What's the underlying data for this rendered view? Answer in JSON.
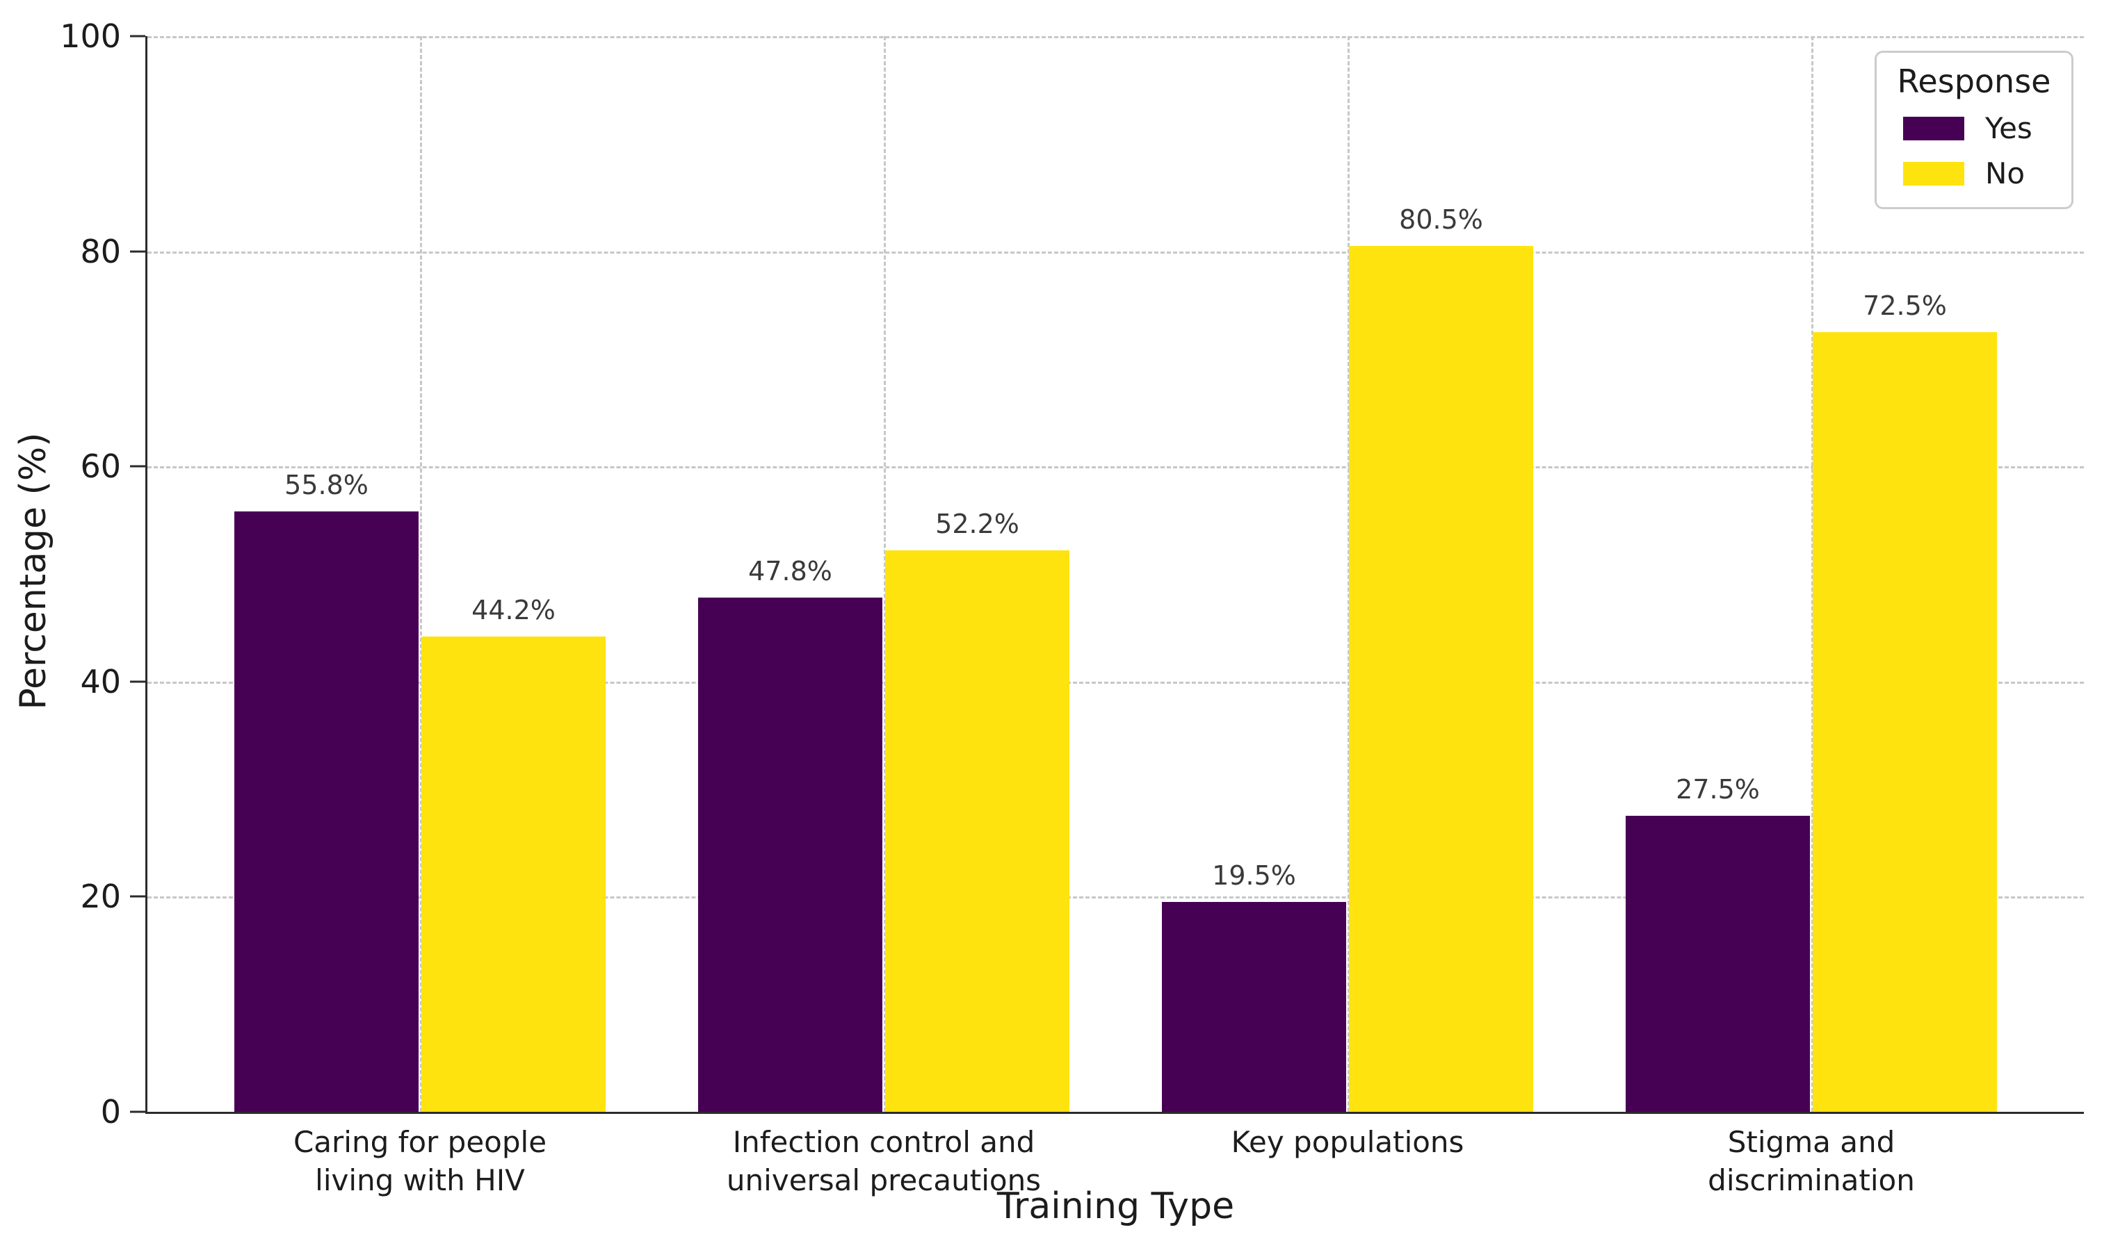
{
  "figure": {
    "background": "#ffffff"
  },
  "legend": {
    "title": "Response",
    "position": "upper right"
  },
  "chart_data": {
    "type": "bar",
    "title": "",
    "xlabel": "Training Type",
    "ylabel": "Percentage (%)",
    "ylim": [
      0,
      100
    ],
    "yticks": [
      0,
      20,
      40,
      60,
      80,
      100
    ],
    "grid": true,
    "grid_style": "dashed",
    "legend_position": "upper right",
    "categories": [
      "Caring for people\nliving with HIV",
      "Infection control and\nuniversal precautions",
      "Key populations",
      "Stigma and\ndiscrimination"
    ],
    "series": [
      {
        "name": "Yes",
        "color": "#470154",
        "values": [
          55.8,
          47.8,
          19.5,
          27.5
        ]
      },
      {
        "name": "No",
        "color": "#ffe30e",
        "values": [
          44.2,
          52.2,
          80.5,
          72.5
        ]
      }
    ],
    "value_label_format": "{v}%"
  }
}
